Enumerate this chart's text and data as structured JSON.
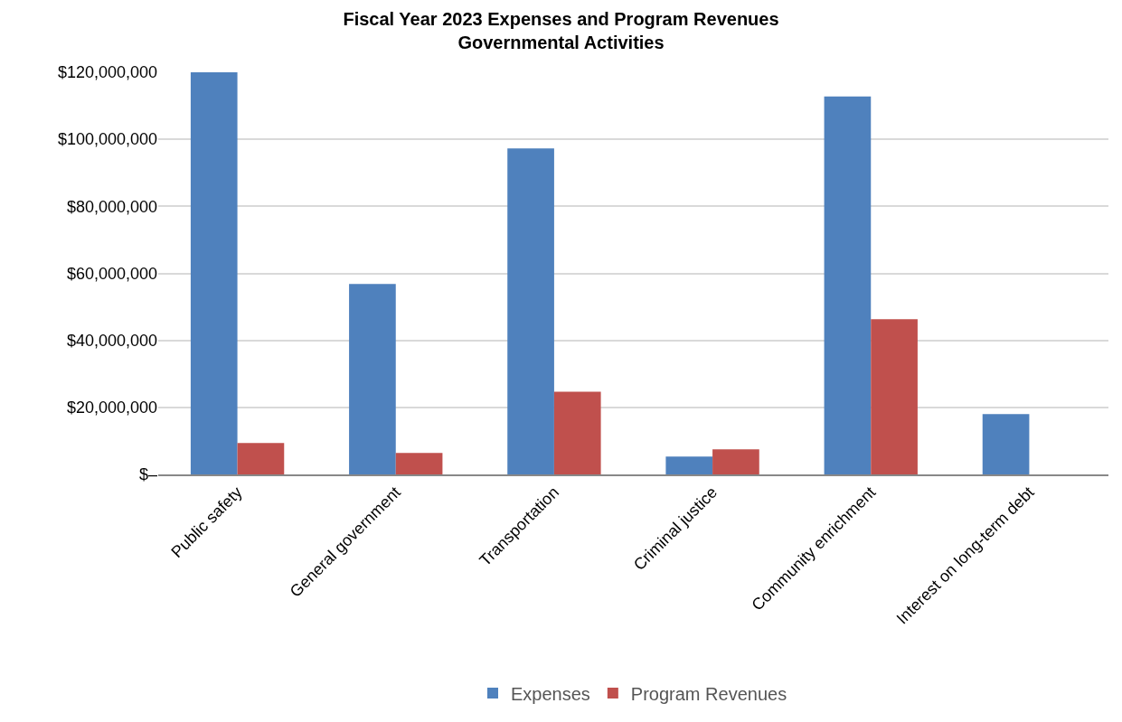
{
  "chart_data": {
    "type": "bar",
    "title": "Fiscal Year 2023 Expenses and Program Revenues\nGovernmental Activities",
    "categories": [
      "Public safety",
      "General government",
      "Transportation",
      "Criminal justice",
      "Community enrichment",
      "Interest on long-term debt"
    ],
    "series": [
      {
        "name": "Expenses",
        "color": "#4f81bd",
        "values": [
          120000000,
          56800000,
          97300000,
          5300000,
          112800000,
          18000000
        ]
      },
      {
        "name": "Program Revenues",
        "color": "#c0504d",
        "values": [
          9400000,
          6400000,
          24700000,
          7500000,
          46300000,
          null
        ]
      }
    ],
    "ylim": [
      0,
      120000000
    ],
    "yticks": [
      {
        "value": 0,
        "label": "$–"
      },
      {
        "value": 20000000,
        "label": "$20,000,000"
      },
      {
        "value": 40000000,
        "label": "$40,000,000"
      },
      {
        "value": 60000000,
        "label": "$60,000,000"
      },
      {
        "value": 80000000,
        "label": "$80,000,000"
      },
      {
        "value": 100000000,
        "label": "$100,000,000"
      },
      {
        "value": 120000000,
        "label": "$120,000,000"
      }
    ],
    "grid": "y",
    "legend": "bottom"
  }
}
